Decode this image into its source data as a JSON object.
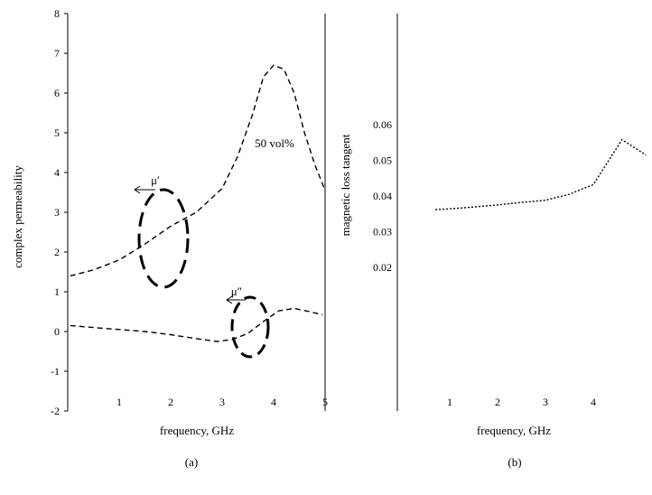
{
  "chart_data": [
    {
      "panel": "(a)",
      "type": "line",
      "xlabel": "frequency, GHz",
      "ylabel": "complex permeability",
      "xlim": [
        0,
        5
      ],
      "ylim": [
        -2,
        8
      ],
      "x_ticks": [
        "1",
        "2",
        "3",
        "4",
        "5"
      ],
      "y_ticks": [
        "8",
        "7",
        "6",
        "5",
        "4",
        "3",
        "2",
        "1",
        "0",
        "-1",
        "-2"
      ],
      "series": [
        {
          "name": "μ′",
          "style": "dashed",
          "x": [
            0.05,
            0.5,
            1.0,
            1.5,
            2.0,
            2.5,
            3.0,
            3.3,
            3.6,
            3.8,
            4.0,
            4.2,
            4.4,
            4.6,
            4.8,
            5.0
          ],
          "y": [
            1.4,
            1.55,
            1.8,
            2.2,
            2.65,
            3.0,
            3.6,
            4.4,
            5.5,
            6.4,
            6.7,
            6.6,
            6.0,
            5.0,
            4.2,
            3.55
          ]
        },
        {
          "name": "μ″",
          "style": "dashed",
          "x": [
            0.05,
            0.5,
            1.0,
            1.5,
            2.0,
            2.5,
            2.9,
            3.2,
            3.5,
            3.8,
            4.1,
            4.4,
            4.7,
            4.95
          ],
          "y": [
            0.15,
            0.1,
            0.05,
            0.0,
            -0.08,
            -0.18,
            -0.25,
            -0.2,
            -0.05,
            0.25,
            0.52,
            0.58,
            0.5,
            0.42
          ]
        }
      ],
      "annotations": [
        "50 vol%",
        "μ′",
        "μ″"
      ]
    },
    {
      "panel": "(b)",
      "type": "line",
      "xlabel": "frequency, GHz",
      "ylabel": "magnetic loss tangent",
      "x_ticks": [
        "1",
        "2",
        "3",
        "4"
      ],
      "y_ticks": [
        "0.06",
        "0.05",
        "0.04",
        "0.03",
        "0.02"
      ],
      "series": [
        {
          "name": "",
          "style": "dotted",
          "x": [
            0.7,
            1.0,
            1.5,
            2.0,
            2.5,
            3.0,
            3.5,
            4.0,
            4.6,
            5.1
          ],
          "y": [
            0.0362,
            0.0364,
            0.0369,
            0.0375,
            0.0382,
            0.0388,
            0.0405,
            0.0432,
            0.0558,
            0.0515
          ]
        }
      ]
    }
  ],
  "captions": {
    "a": "(a)",
    "b": "(b)"
  }
}
